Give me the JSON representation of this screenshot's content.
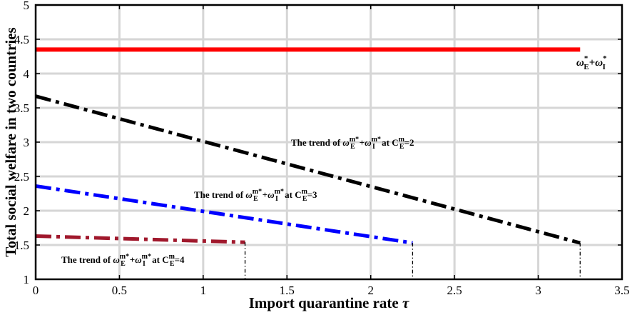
{
  "chart_data": {
    "type": "line",
    "xlabel": "Import quarantine rate τ",
    "ylabel": "Total social welfare in two countries",
    "xlim": [
      0,
      3.5
    ],
    "ylim": [
      1,
      5
    ],
    "xticks": [
      "0",
      "0.5",
      "1",
      "1.5",
      "2",
      "2.5",
      "3",
      "3.5"
    ],
    "yticks": [
      "1",
      "1.5",
      "2",
      "2.5",
      "3",
      "3.5",
      "4",
      "4.5",
      "5"
    ],
    "grid": true,
    "series": [
      {
        "key": "red",
        "color": "#ff0000",
        "style": "solid",
        "x": [
          0,
          3.25
        ],
        "y": [
          4.35,
          4.35
        ],
        "label": {
          "prefix": "",
          "sup1": "*",
          "sub1": "E",
          "mid": "+",
          "sup2": "*",
          "sub2": "I",
          "post": "",
          "csup": "",
          "csub": "",
          "tail": ""
        }
      },
      {
        "key": "black",
        "color": "#000000",
        "style": "dashdot",
        "x": [
          0,
          3.25
        ],
        "y": [
          3.67,
          1.53
        ],
        "label": {
          "prefix": "The trend of ",
          "sup1": "m*",
          "sub1": "E",
          "mid": "+",
          "sup2": "m*",
          "sub2": "I",
          "post": " at C",
          "csup": "m",
          "csub": "E",
          "tail": "=2"
        }
      },
      {
        "key": "blue",
        "color": "#0000ff",
        "style": "dashdot",
        "x": [
          0,
          2.25
        ],
        "y": [
          2.36,
          1.53
        ],
        "label": {
          "prefix": "The trend of ",
          "sup1": "m*",
          "sub1": "E",
          "mid": "+",
          "sup2": "m*",
          "sub2": "I",
          "post": " at C",
          "csup": "m",
          "csub": "E",
          "tail": "=3"
        }
      },
      {
        "key": "maroon",
        "color": "#a0182c",
        "style": "dashdot",
        "x": [
          0,
          1.25
        ],
        "y": [
          1.63,
          1.54
        ],
        "label": {
          "prefix": "The trend of ",
          "sup1": "m*",
          "sub1": "E",
          "mid": "+",
          "sup2": "m*",
          "sub2": "I",
          "post": " at C",
          "csup": "m",
          "csub": "E",
          "tail": "=4"
        }
      }
    ],
    "drop_lines_x": [
      1.25,
      2.25,
      3.25
    ]
  }
}
